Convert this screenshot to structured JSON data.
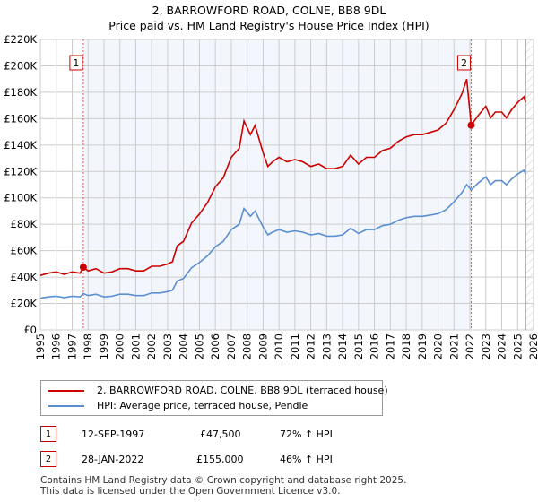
{
  "chart_data": {
    "type": "line",
    "title": "2, BARROWFORD ROAD, COLNE, BB8 9DL",
    "subtitle": "Price paid vs. HM Land Registry's House Price Index (HPI)",
    "xlim": [
      1995,
      2026
    ],
    "ylim": [
      0,
      220000
    ],
    "x_ticks": [
      "1995",
      "1996",
      "1997",
      "1998",
      "1999",
      "2000",
      "2001",
      "2002",
      "2003",
      "2004",
      "2005",
      "2006",
      "2007",
      "2008",
      "2009",
      "2010",
      "2011",
      "2012",
      "2013",
      "2014",
      "2015",
      "2016",
      "2017",
      "2018",
      "2019",
      "2020",
      "2021",
      "2022",
      "2023",
      "2024",
      "2025",
      "2026"
    ],
    "y_ticks": [
      "£0",
      "£20K",
      "£40K",
      "£60K",
      "£80K",
      "£100K",
      "£120K",
      "£140K",
      "£160K",
      "£180K",
      "£200K",
      "£220K"
    ],
    "x": [
      1995,
      1995.5,
      1996,
      1996.5,
      1997,
      1997.5,
      1997.7,
      1998,
      1998.5,
      1999,
      1999.5,
      2000,
      2000.5,
      2001,
      2001.5,
      2002,
      2002.5,
      2003,
      2003.3,
      2003.6,
      2004,
      2004.5,
      2005,
      2005.5,
      2006,
      2006.5,
      2007,
      2007.5,
      2007.8,
      2008.2,
      2008.5,
      2009,
      2009.3,
      2009.6,
      2010,
      2010.5,
      2011,
      2011.5,
      2012,
      2012.5,
      2013,
      2013.5,
      2014,
      2014.5,
      2015,
      2015.5,
      2016,
      2016.5,
      2017,
      2017.5,
      2018,
      2018.5,
      2019,
      2019.5,
      2020,
      2020.5,
      2021,
      2021.5,
      2021.8,
      2022.08,
      2022.5,
      2023,
      2023.3,
      2023.6,
      2024,
      2024.3,
      2024.6,
      2025,
      2025.4,
      2025.5
    ],
    "series": [
      {
        "name": "2, BARROWFORD ROAD, COLNE, BB8 9DL (terraced house)",
        "color": "#cc0000",
        "values": [
          41.3,
          43,
          43.9,
          42.1,
          43.9,
          43,
          47.5,
          44.7,
          46.4,
          43,
          43.9,
          46.4,
          46.4,
          44.7,
          44.7,
          48.2,
          48.2,
          49.9,
          51.6,
          63.6,
          67.1,
          80.8,
          87.7,
          96.3,
          108.4,
          115.2,
          130.7,
          137.6,
          158.2,
          147.9,
          154.8,
          134.2,
          123.8,
          127.3,
          130.7,
          127.3,
          129,
          127.3,
          123.8,
          125.6,
          122.1,
          122.1,
          123.8,
          132.4,
          125.6,
          130.7,
          130.7,
          135.9,
          137.6,
          142.8,
          146.2,
          147.9,
          147.9,
          149.6,
          151.4,
          156.5,
          166.8,
          178.9,
          190,
          155,
          162,
          169.4,
          160.6,
          165,
          165,
          160.6,
          166.4,
          172.3,
          176.7,
          172.3
        ]
      },
      {
        "name": "HPI: Average price, terraced house, Pendle",
        "color": "#5b8fd0",
        "values": [
          24,
          25,
          25.5,
          24.5,
          25.5,
          25,
          27.6,
          26,
          27,
          25,
          25.5,
          27,
          27,
          26,
          26,
          28,
          28,
          29,
          30,
          37,
          39,
          47,
          51,
          56,
          63,
          67,
          76,
          80,
          92,
          86,
          90,
          78,
          72,
          74,
          76,
          74,
          75,
          74,
          72,
          73,
          71,
          71,
          72,
          77,
          73,
          76,
          76,
          79,
          80,
          83,
          85,
          86,
          86,
          87,
          88,
          91,
          97,
          104,
          110,
          106,
          111,
          116,
          110,
          113,
          113,
          110,
          114,
          118,
          121,
          118
        ]
      }
    ],
    "value_unit": "thousands GBP",
    "sales": [
      {
        "label": "1",
        "x": 1997.7,
        "value": 47.5
      },
      {
        "label": "2",
        "x": 2022.08,
        "value": 155
      }
    ],
    "shaded_range": [
      1997.7,
      2022.08
    ],
    "hatched_from": 2025.5
  },
  "legend": {
    "items": [
      "2, BARROWFORD ROAD, COLNE, BB8 9DL (terraced house)",
      "HPI: Average price, terraced house, Pendle"
    ]
  },
  "table": [
    {
      "num": "1",
      "date": "12-SEP-1997",
      "price": "£47,500",
      "hpi": "72% ↑ HPI"
    },
    {
      "num": "2",
      "date": "28-JAN-2022",
      "price": "£155,000",
      "hpi": "46% ↑ HPI"
    }
  ],
  "footer": [
    "Contains HM Land Registry data © Crown copyright and database right 2025.",
    "This data is licensed under the Open Government Licence v3.0."
  ]
}
